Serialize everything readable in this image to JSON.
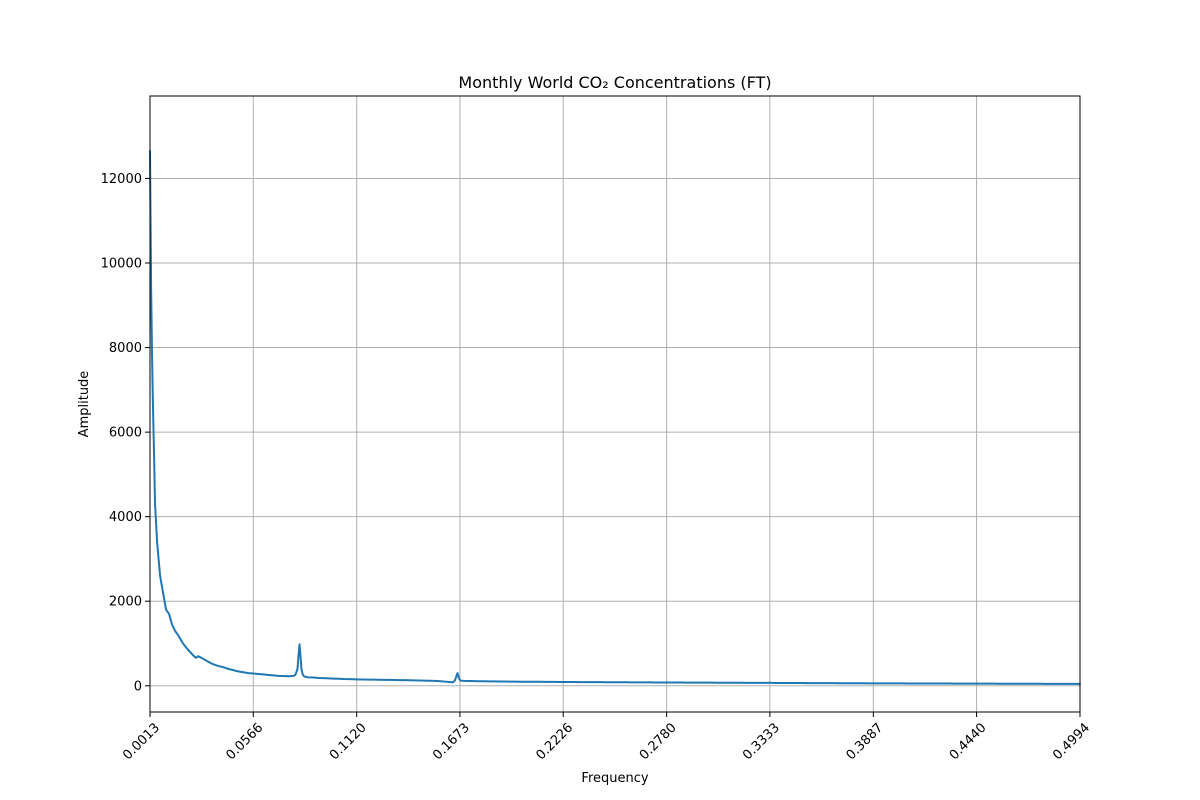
{
  "chart_data": {
    "type": "line",
    "title": "Monthly World CO₂ Concentrations (FT)",
    "xlabel": "Frequency",
    "ylabel": "Amplitude",
    "xlim": [
      0.0013,
      0.4994
    ],
    "ylim": [
      -620,
      13950
    ],
    "grid": true,
    "line_color": "#1f77b4",
    "x_ticks": [
      {
        "value": 0.0013,
        "label": "0.0013"
      },
      {
        "value": 0.0566,
        "label": "0.0566"
      },
      {
        "value": 0.112,
        "label": "0.1120"
      },
      {
        "value": 0.1673,
        "label": "0.1673"
      },
      {
        "value": 0.2226,
        "label": "0.2226"
      },
      {
        "value": 0.278,
        "label": "0.2780"
      },
      {
        "value": 0.3333,
        "label": "0.3333"
      },
      {
        "value": 0.3887,
        "label": "0.3887"
      },
      {
        "value": 0.444,
        "label": "0.4440"
      },
      {
        "value": 0.4994,
        "label": "0.4994"
      }
    ],
    "y_ticks": [
      {
        "value": 0,
        "label": "0"
      },
      {
        "value": 2000,
        "label": "2000"
      },
      {
        "value": 4000,
        "label": "4000"
      },
      {
        "value": 6000,
        "label": "6000"
      },
      {
        "value": 8000,
        "label": "8000"
      },
      {
        "value": 10000,
        "label": "10000"
      },
      {
        "value": 12000,
        "label": "12000"
      }
    ],
    "series": [
      {
        "x": [
          0.0013,
          0.0019,
          0.0024,
          0.0029,
          0.0035,
          0.004,
          0.0051,
          0.0067,
          0.0083,
          0.0099,
          0.0115,
          0.0131,
          0.0147,
          0.0163,
          0.019,
          0.0217,
          0.0244,
          0.026,
          0.027,
          0.028,
          0.0297,
          0.0324,
          0.0351,
          0.0378,
          0.0405,
          0.0432,
          0.0459,
          0.0486,
          0.0513,
          0.054,
          0.0566,
          0.0593,
          0.062,
          0.0647,
          0.0674,
          0.0701,
          0.0728,
          0.0755,
          0.0782,
          0.0792,
          0.0803,
          0.0808,
          0.0814,
          0.0819,
          0.0824,
          0.083,
          0.0835,
          0.0846,
          0.0862,
          0.0889,
          0.0916,
          0.0943,
          0.097,
          0.0997,
          0.1024,
          0.1051,
          0.1078,
          0.1105,
          0.1131,
          0.1158,
          0.1185,
          0.1212,
          0.1239,
          0.1266,
          0.1293,
          0.132,
          0.1347,
          0.1374,
          0.1401,
          0.1428,
          0.1455,
          0.1482,
          0.1509,
          0.1536,
          0.1563,
          0.159,
          0.1617,
          0.1633,
          0.1644,
          0.1652,
          0.166,
          0.1665,
          0.1671,
          0.1676,
          0.1684,
          0.1698,
          0.1725,
          0.1752,
          0.1779,
          0.1806,
          0.1833,
          0.186,
          0.1887,
          0.1914,
          0.1941,
          0.1968,
          0.1995,
          0.2022,
          0.2049,
          0.2076,
          0.2103,
          0.213,
          0.2157,
          0.2184,
          0.2211,
          0.2238,
          0.2265,
          0.2292,
          0.2319,
          0.2346,
          0.2373,
          0.24,
          0.2427,
          0.2454,
          0.2481,
          0.2508,
          0.2535,
          0.2562,
          0.2589,
          0.2616,
          0.2643,
          0.267,
          0.2697,
          0.2724,
          0.2751,
          0.2778,
          0.2805,
          0.2832,
          0.2859,
          0.2886,
          0.2913,
          0.294,
          0.2967,
          0.2994,
          0.3021,
          0.3048,
          0.3075,
          0.3102,
          0.3129,
          0.3156,
          0.3183,
          0.321,
          0.3237,
          0.3264,
          0.3291,
          0.3318,
          0.3333,
          0.3345,
          0.3372,
          0.3399,
          0.3426,
          0.3453,
          0.348,
          0.3507,
          0.3534,
          0.3561,
          0.3588,
          0.3615,
          0.3642,
          0.3669,
          0.3696,
          0.3723,
          0.375,
          0.3777,
          0.3804,
          0.3831,
          0.3858,
          0.3885,
          0.3912,
          0.3939,
          0.3966,
          0.3993,
          0.402,
          0.4047,
          0.4074,
          0.4101,
          0.4128,
          0.4155,
          0.4182,
          0.4209,
          0.4236,
          0.4263,
          0.429,
          0.4317,
          0.4344,
          0.4371,
          0.4398,
          0.4425,
          0.4452,
          0.4479,
          0.4506,
          0.4533,
          0.456,
          0.4587,
          0.4614,
          0.4641,
          0.4668,
          0.4695,
          0.4722,
          0.4749,
          0.4776,
          0.4803,
          0.483,
          0.4857,
          0.4884,
          0.4911,
          0.4938,
          0.4965,
          0.4994
        ],
        "y": [
          12650,
          9400,
          7800,
          6600,
          5400,
          4300,
          3400,
          2600,
          2200,
          1800,
          1700,
          1450,
          1300,
          1200,
          1000,
          850,
          720,
          660,
          700,
          680,
          640,
          570,
          510,
          470,
          440,
          400,
          370,
          340,
          320,
          300,
          290,
          280,
          270,
          255,
          245,
          235,
          230,
          225,
          235,
          260,
          400,
          700,
          980,
          700,
          400,
          280,
          235,
          210,
          200,
          195,
          185,
          180,
          175,
          170,
          165,
          160,
          158,
          155,
          150,
          150,
          147,
          145,
          143,
          140,
          140,
          138,
          135,
          133,
          130,
          128,
          125,
          122,
          120,
          115,
          110,
          100,
          90,
          80,
          110,
          200,
          300,
          220,
          150,
          125,
          118,
          115,
          112,
          110,
          108,
          106,
          105,
          103,
          100,
          100,
          99,
          98,
          97,
          96,
          95,
          95,
          94,
          93,
          92,
          92,
          91,
          90,
          90,
          89,
          88,
          88,
          87,
          86,
          86,
          85,
          85,
          84,
          83,
          83,
          82,
          82,
          81,
          80,
          80,
          79,
          79,
          78,
          78,
          77,
          77,
          76,
          76,
          75,
          75,
          74,
          74,
          73,
          73,
          72,
          72,
          71,
          71,
          70,
          70,
          69,
          69,
          68,
          75,
          68,
          67,
          67,
          66,
          66,
          65,
          65,
          64,
          64,
          63,
          63,
          62,
          62,
          61,
          61,
          60,
          60,
          59,
          59,
          58,
          58,
          58,
          57,
          57,
          56,
          56,
          56,
          55,
          55,
          55,
          54,
          54,
          54,
          53,
          53,
          53,
          52,
          52,
          52,
          51,
          51,
          51,
          50,
          50,
          50,
          49,
          49,
          49,
          48,
          48,
          48,
          47,
          47,
          47,
          46,
          46,
          46,
          46,
          45,
          45,
          45,
          45
        ]
      }
    ]
  }
}
